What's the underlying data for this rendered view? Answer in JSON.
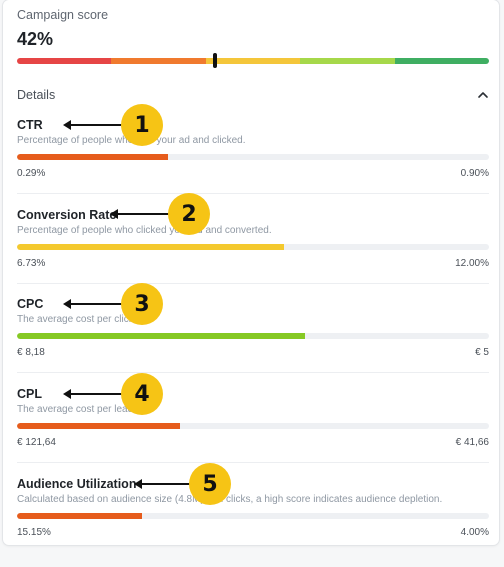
{
  "score": {
    "label": "Campaign score",
    "value": "42%",
    "level": 0.42
  },
  "scale_colors": [
    "#e64545",
    "#f07a2e",
    "#f4c63a",
    "#a6d84a",
    "#3fae62"
  ],
  "details": {
    "label": "Details",
    "toggle_icon": "chevron-up-icon"
  },
  "metrics": [
    {
      "name": "CTR",
      "description": "Percentage of people who saw your ad and clicked.",
      "low": "0.29%",
      "high": "0.90%",
      "level": 0.32,
      "color": "#e65c1c"
    },
    {
      "name": "Conversion Rate",
      "description": "Percentage of people who clicked your ad and converted.",
      "low": "6.73%",
      "high": "12.00%",
      "level": 0.565,
      "color": "#f4c92e"
    },
    {
      "name": "CPC",
      "description": "The average cost per click.",
      "low": "€ 8,18",
      "high": "€ 5",
      "level": 0.61,
      "color": "#86c924"
    },
    {
      "name": "CPL",
      "description": "The average cost per lead.",
      "low": "€ 121,64",
      "high": "€ 41,66",
      "level": 0.345,
      "color": "#e65c1c"
    },
    {
      "name": "Audience Utilization",
      "description": "Calculated based on audience size (4.8M) and clicks, a high score indicates audience depletion.",
      "low": "15.15%",
      "high": "4.00%",
      "level": 0.265,
      "color": "#e65c1c"
    }
  ],
  "annotations": [
    "1",
    "2",
    "3",
    "4",
    "5"
  ]
}
